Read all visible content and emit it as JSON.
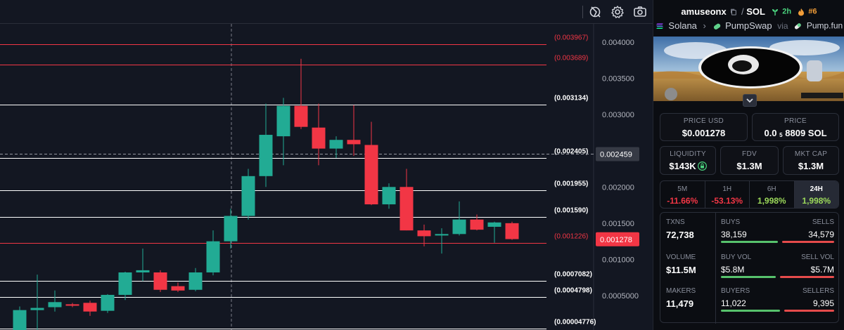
{
  "chart_data": {
    "type": "candlestick",
    "y_range": [
      -0.0002,
      0.0045
    ],
    "y_ticks": [
      {
        "value": 0.004,
        "label": "0.004000"
      },
      {
        "value": 0.0035,
        "label": "0.003500"
      },
      {
        "value": 0.003,
        "label": "0.003000"
      },
      {
        "value": 0.002,
        "label": "0.002000"
      },
      {
        "value": 0.0015,
        "label": "0.001500"
      },
      {
        "value": 0.001,
        "label": "0.001000"
      },
      {
        "value": 0.0005,
        "label": "0.0005000"
      }
    ],
    "price_lines": [
      {
        "value": 0.003967,
        "label": "(0.003967)",
        "color": "#f23645"
      },
      {
        "value": 0.003689,
        "label": "(0.003689)",
        "color": "#f23645"
      },
      {
        "value": 0.003134,
        "label": "(0.003134)",
        "color": "#ffffff"
      },
      {
        "value": 0.002405,
        "label": "(0.002405)",
        "color": "#ffffff"
      },
      {
        "value": 0.001955,
        "label": "(0.001955)",
        "color": "#ffffff"
      },
      {
        "value": 0.00159,
        "label": "(0.001590)",
        "color": "#ffffff"
      },
      {
        "value": 0.001226,
        "label": "(0.001226)",
        "color": "#f23645"
      },
      {
        "value": 0.0007082,
        "label": "(0.0007082)",
        "color": "#ffffff"
      },
      {
        "value": 0.0004798,
        "label": "(0.0004798)",
        "color": "#ffffff"
      },
      {
        "value": 4.776e-05,
        "label": "(0.00004776)",
        "color": "#ffffff"
      }
    ],
    "crosshair_price": {
      "value": 0.002459,
      "label": "0.002459"
    },
    "last_price": {
      "value": 0.001278,
      "label": "0.001278"
    },
    "candles": [
      {
        "o": 0.0,
        "h": 0.00035,
        "l": 0.0,
        "c": 0.0003
      },
      {
        "o": 0.0003,
        "h": 0.00079,
        "l": 0.0,
        "c": 0.00033
      },
      {
        "o": 0.00034,
        "h": 0.00057,
        "l": 0.00028,
        "c": 0.00041
      },
      {
        "o": 0.00038,
        "h": 0.0004,
        "l": 0.00034,
        "c": 0.00036
      },
      {
        "o": 0.0004,
        "h": 0.00043,
        "l": 0.00022,
        "c": 0.00028
      },
      {
        "o": 0.00029,
        "h": 0.00052,
        "l": 0.00026,
        "c": 0.00051
      },
      {
        "o": 0.00051,
        "h": 0.00083,
        "l": 0.00044,
        "c": 0.00082
      },
      {
        "o": 0.00082,
        "h": 0.00115,
        "l": 0.0007,
        "c": 0.00085
      },
      {
        "o": 0.00082,
        "h": 0.00085,
        "l": 0.00055,
        "c": 0.00058
      },
      {
        "o": 0.00063,
        "h": 0.00068,
        "l": 0.00055,
        "c": 0.00057
      },
      {
        "o": 0.00058,
        "h": 0.00088,
        "l": 0.00056,
        "c": 0.00082
      },
      {
        "o": 0.00082,
        "h": 0.0014,
        "l": 0.00078,
        "c": 0.00125
      },
      {
        "o": 0.00125,
        "h": 0.0017,
        "l": 0.00115,
        "c": 0.0016
      },
      {
        "o": 0.0016,
        "h": 0.00225,
        "l": 0.00155,
        "c": 0.00215
      },
      {
        "o": 0.00215,
        "h": 0.00315,
        "l": 0.002,
        "c": 0.00272
      },
      {
        "o": 0.0027,
        "h": 0.00323,
        "l": 0.0023,
        "c": 0.00312
      },
      {
        "o": 0.00312,
        "h": 0.00377,
        "l": 0.0028,
        "c": 0.00283
      },
      {
        "o": 0.00282,
        "h": 0.00315,
        "l": 0.0023,
        "c": 0.00253
      },
      {
        "o": 0.00253,
        "h": 0.0027,
        "l": 0.0024,
        "c": 0.00265
      },
      {
        "o": 0.00265,
        "h": 0.00313,
        "l": 0.00243,
        "c": 0.00259
      },
      {
        "o": 0.00258,
        "h": 0.0029,
        "l": 0.00175,
        "c": 0.00176
      },
      {
        "o": 0.00176,
        "h": 0.00205,
        "l": 0.0017,
        "c": 0.002
      },
      {
        "o": 0.002,
        "h": 0.00225,
        "l": 0.0014,
        "c": 0.0014
      },
      {
        "o": 0.0014,
        "h": 0.00148,
        "l": 0.00118,
        "c": 0.00132
      },
      {
        "o": 0.00133,
        "h": 0.00143,
        "l": 0.00108,
        "c": 0.00135
      },
      {
        "o": 0.00135,
        "h": 0.0018,
        "l": 0.00133,
        "c": 0.00155
      },
      {
        "o": 0.00155,
        "h": 0.00162,
        "l": 0.0014,
        "c": 0.00141
      },
      {
        "o": 0.00145,
        "h": 0.00152,
        "l": 0.00123,
        "c": 0.00151
      },
      {
        "o": 0.0015,
        "h": 0.00152,
        "l": 0.00127,
        "c": 0.00128
      }
    ],
    "colors": {
      "up": "#22ab94",
      "down": "#f23645",
      "wick_up": "#22ab94",
      "wick_down": "#f23645"
    },
    "grid": false
  },
  "toolbar": {
    "icons": [
      "chart-style-icon",
      "gear-icon",
      "camera-icon"
    ]
  },
  "pair": {
    "base": "amuseonx",
    "quote": "SOL",
    "separator": "/",
    "age": "2h",
    "rank": "#6",
    "chain": "Solana",
    "dex": "PumpSwap",
    "via_label": "via",
    "launchpad": "Pump.fun"
  },
  "price": {
    "usd_label": "PRICE USD",
    "usd_value": "$0.001278",
    "native_label": "PRICE",
    "native_prefix": "0.0",
    "native_sub": "5",
    "native_suffix": "8809 SOL"
  },
  "metrics": {
    "liquidity_label": "LIQUIDITY",
    "liquidity_value": "$143K",
    "fdv_label": "FDV",
    "fdv_value": "$1.3M",
    "mcap_label": "MKT CAP",
    "mcap_value": "$1.3M"
  },
  "timeframes": [
    {
      "label": "5M",
      "value": "-11.66%"
    },
    {
      "label": "1H",
      "value": "-53.13%"
    },
    {
      "label": "6H",
      "value": "1,998%"
    },
    {
      "label": "24H",
      "value": "1,998%"
    }
  ],
  "stats": {
    "txns_label": "TXNS",
    "txns_value": "72,738",
    "buys_label": "BUYS",
    "buys_value": "38,159",
    "sells_label": "SELLS",
    "sells_value": "34,579",
    "volume_label": "VOLUME",
    "volume_value": "$11.5M",
    "buyvol_label": "BUY VOL",
    "buyvol_value": "$5.8M",
    "sellvol_label": "SELL VOL",
    "sellvol_value": "$5.7M",
    "makers_label": "MAKERS",
    "makers_value": "11,479",
    "buyers_label": "BUYERS",
    "buyers_value": "11,022",
    "sellers_label": "SELLERS",
    "sellers_value": "9,395",
    "buy_share_txns": 0.525,
    "buy_share_vol": 0.504,
    "buy_share_makers": 0.54
  }
}
